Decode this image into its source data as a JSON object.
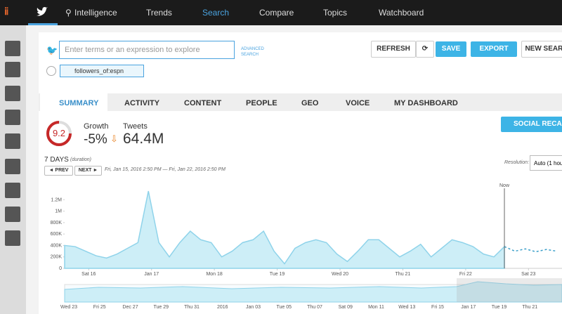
{
  "nav": {
    "items": [
      "Intelligence",
      "Trends",
      "Search",
      "Compare",
      "Topics",
      "Watchboard"
    ]
  },
  "search": {
    "placeholder": "Enter terms or an expression to explore",
    "advanced": "ADVANCED SEARCH",
    "refresh": "REFRESH",
    "save": "SAVE",
    "export": "EXPORT",
    "new_search": "NEW SEARC",
    "filter": "followers_of:espn"
  },
  "tabs": [
    "SUMMARY",
    "ACTIVITY",
    "CONTENT",
    "PEOPLE",
    "GEO",
    "VOICE",
    "MY DASHBOARD"
  ],
  "summary": {
    "score": "9.2",
    "growth_label": "Growth",
    "growth": "-5%",
    "tweets_label": "Tweets",
    "tweets": "64.4M",
    "social_button": "SOCIAL RECAL"
  },
  "range": {
    "duration": "7 DAYS",
    "duration_note": "(duration)",
    "prev": "◄ PREV",
    "next": "NEXT ►",
    "dates": "Fri, Jan 15, 2016 2:50 PM — Fri, Jan 22, 2016 2:50 PM",
    "resolution_label": "Resolution:",
    "resolution": "Auto (1 hou"
  },
  "chart_data": {
    "type": "area",
    "color": "#8fd3ea",
    "fill": "#cdeef7",
    "x": [
      0,
      4,
      8,
      12,
      16,
      20,
      24,
      28,
      32,
      36,
      40,
      44,
      48,
      52,
      56,
      60,
      64,
      68,
      72,
      76,
      80,
      84,
      88,
      92,
      96,
      100,
      104,
      108,
      112,
      116,
      120,
      124,
      128,
      132,
      136,
      140,
      144,
      148,
      152,
      156,
      160,
      164,
      168
    ],
    "values": [
      400000,
      380000,
      300000,
      220000,
      180000,
      250000,
      350000,
      450000,
      1350000,
      450000,
      200000,
      450000,
      650000,
      500000,
      450000,
      200000,
      300000,
      450000,
      500000,
      650000,
      300000,
      80000,
      350000,
      450000,
      500000,
      450000,
      250000,
      120000,
      300000,
      500000,
      500000,
      350000,
      200000,
      300000,
      420000,
      200000,
      350000,
      500000,
      450000,
      380000,
      250000,
      200000,
      380000
    ],
    "forecast": {
      "x": [
        168,
        172,
        176,
        180,
        184,
        188
      ],
      "values": [
        380000,
        300000,
        340000,
        290000,
        330000,
        300000
      ]
    },
    "now": 168,
    "now_label": "Now",
    "xlim": [
      0,
      190
    ],
    "ylim": [
      0,
      1400000
    ],
    "yticks": [
      0,
      {
        "value": 200000,
        "label": "200K"
      },
      {
        "value": 400000,
        "label": "400K"
      },
      {
        "value": 600000,
        "label": "600K"
      },
      {
        "value": 800000,
        "label": "800K"
      },
      {
        "value": 1000000,
        "label": "1M"
      },
      {
        "value": 1200000,
        "label": "1.2M"
      }
    ],
    "xticks": [
      {
        "value": 9.2,
        "label": "Sat 16"
      },
      {
        "value": 33.2,
        "label": "Jan 17"
      },
      {
        "value": 57.2,
        "label": "Mon 18"
      },
      {
        "value": 81.2,
        "label": "Tue 19"
      },
      {
        "value": 105.2,
        "label": "Wed 20"
      },
      {
        "value": 129.2,
        "label": "Thu 21"
      },
      {
        "value": 153.2,
        "label": "Fri 22"
      },
      {
        "value": 177.2,
        "label": "Sat 23"
      }
    ]
  },
  "navigator": {
    "labels": [
      "Wed 23",
      "Fri 25",
      "Dec 27",
      "Tue 29",
      "Thu 31",
      "2016",
      "Jan 03",
      "Tue 05",
      "Thu 07",
      "Sat 09",
      "Mon 11",
      "Wed 13",
      "Fri 15",
      "Jan 17",
      "Tue 19",
      "Thu 21"
    ]
  }
}
